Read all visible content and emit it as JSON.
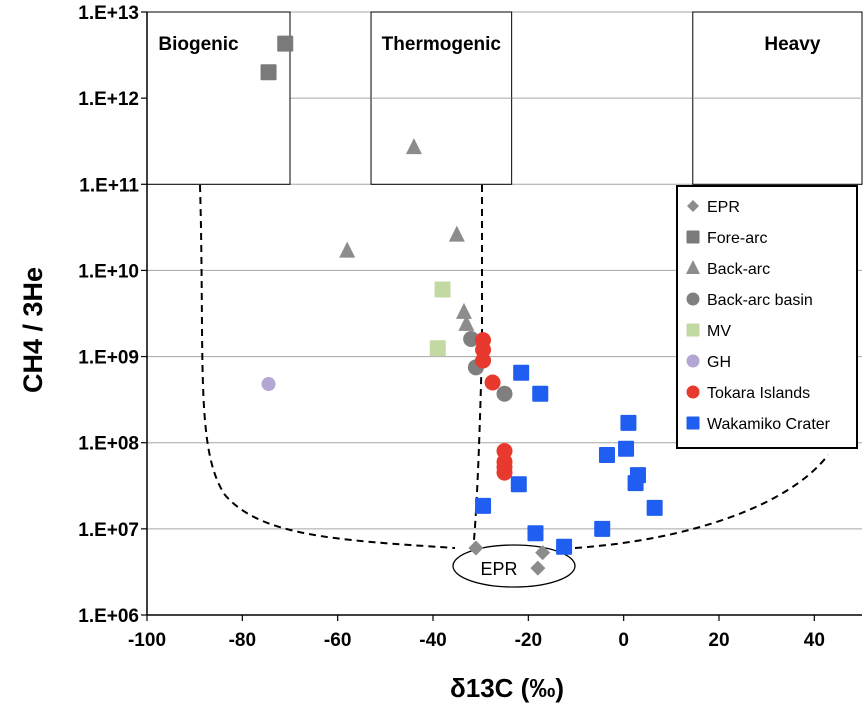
{
  "chart_data": {
    "type": "scatter",
    "title": "",
    "xlabel": "δ13C (‰)",
    "ylabel": "CH4 / 3He",
    "xlim": [
      -100,
      50
    ],
    "ylim_log10": [
      6,
      13
    ],
    "y_scale": "log",
    "grid": "horizontal",
    "legend_position": "right",
    "x_ticks": [
      -100,
      -80,
      -60,
      -40,
      -20,
      0,
      20,
      40
    ],
    "y_ticks": [
      {
        "value": 1000000.0,
        "label": "1.E+06"
      },
      {
        "value": 10000000.0,
        "label": "1.E+07"
      },
      {
        "value": 100000000.0,
        "label": "1.E+08"
      },
      {
        "value": 1000000000.0,
        "label": "1.E+09"
      },
      {
        "value": 10000000000.0,
        "label": "1.E+10"
      },
      {
        "value": 100000000000.0,
        "label": "1.E+11"
      },
      {
        "value": 1000000000000.0,
        "label": "1.E+12"
      },
      {
        "value": 10000000000000.0,
        "label": "1.E+13"
      }
    ],
    "regions": [
      {
        "label": "Biogenic"
      },
      {
        "label": "Thermogenic"
      },
      {
        "label": "Heavy"
      }
    ],
    "annotations": [
      {
        "label": "EPR"
      }
    ],
    "series": [
      {
        "name": "EPR",
        "marker": "diamond",
        "color": "#8c8c8c",
        "points": [
          [
            -31,
            6000000
          ],
          [
            -17,
            5300000
          ],
          [
            -18,
            3500000
          ]
        ]
      },
      {
        "name": "Fore-arc",
        "marker": "square",
        "color": "#7a7a7a",
        "points": [
          [
            -71,
            4300000000000
          ],
          [
            -74.5,
            2000000000000
          ]
        ]
      },
      {
        "name": "Back-arc",
        "marker": "triangle",
        "color": "#8c8c8c",
        "points": [
          [
            -44,
            270000000000
          ],
          [
            -58,
            17000000000
          ],
          [
            -35,
            26000000000
          ],
          [
            -33.5,
            3300000000
          ],
          [
            -33,
            2400000000
          ]
        ]
      },
      {
        "name": "Back-arc basin",
        "marker": "circle",
        "color": "#7f7f7f",
        "points": [
          [
            -32,
            1600000000
          ],
          [
            -31,
            750000000
          ],
          [
            -25,
            370000000
          ]
        ]
      },
      {
        "name": "MV",
        "marker": "square",
        "color": "#c2d9a4",
        "points": [
          [
            -38,
            6000000000
          ],
          [
            -39,
            1250000000
          ]
        ]
      },
      {
        "name": "GH",
        "marker": "circle",
        "color": "#b3a6d2",
        "points": [
          [
            -74.5,
            480000000
          ]
        ]
      },
      {
        "name": "Tokara Islands",
        "marker": "circle",
        "color": "#e8392e",
        "points": [
          [
            -29.5,
            1550000000
          ],
          [
            -29.5,
            1200000000
          ],
          [
            -29.5,
            900000000
          ],
          [
            -27.5,
            500000000
          ],
          [
            -25,
            80000000
          ],
          [
            -25,
            60000000
          ],
          [
            -25,
            52000000
          ],
          [
            -25,
            45000000
          ]
        ]
      },
      {
        "name": "Wakamiko Crater",
        "marker": "square",
        "color": "#1f5ef0",
        "points": [
          [
            -21.5,
            650000000
          ],
          [
            -17.5,
            370000000
          ],
          [
            1,
            170000000
          ],
          [
            0.5,
            85000000
          ],
          [
            -3.5,
            72000000
          ],
          [
            3,
            42000000
          ],
          [
            2.5,
            34000000
          ],
          [
            -22,
            33000000
          ],
          [
            6.5,
            17500000
          ],
          [
            -29.5,
            18500000
          ],
          [
            -18.5,
            8900000
          ],
          [
            -4.5,
            10000000
          ],
          [
            -12.5,
            6200000
          ]
        ]
      }
    ]
  }
}
